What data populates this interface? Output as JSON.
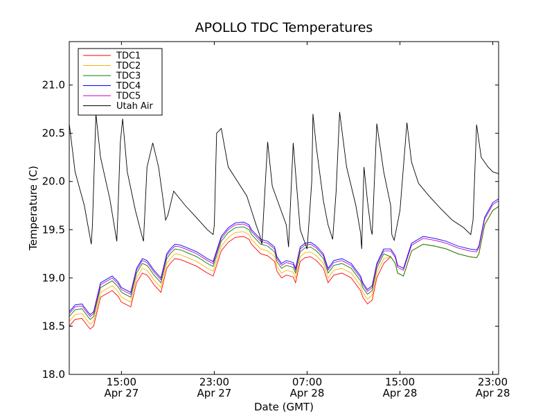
{
  "chart_data": {
    "type": "line",
    "title": "APOLLO TDC Temperatures",
    "xlabel": "Date (GMT)",
    "ylabel": "Temperature (C)",
    "xlim": [
      10.5,
      47.5
    ],
    "ylim": [
      18.0,
      21.45
    ],
    "x_units": "hours since Apr 27 00:00 GMT",
    "legend_position": "upper-left",
    "grid": false,
    "yticks": [
      {
        "value": 18.0,
        "label": "18.0"
      },
      {
        "value": 18.5,
        "label": "18.5"
      },
      {
        "value": 19.0,
        "label": "19.0"
      },
      {
        "value": 19.5,
        "label": "19.5"
      },
      {
        "value": 20.0,
        "label": "20.0"
      },
      {
        "value": 20.5,
        "label": "20.5"
      },
      {
        "value": 21.0,
        "label": "21.0"
      }
    ],
    "xticks": [
      {
        "value": 15,
        "time": "15:00",
        "date": "Apr 27"
      },
      {
        "value": 23,
        "time": "23:00",
        "date": "Apr 27"
      },
      {
        "value": 31,
        "time": "07:00",
        "date": "Apr 28"
      },
      {
        "value": 39,
        "time": "15:00",
        "date": "Apr 28"
      },
      {
        "value": 47,
        "time": "23:00",
        "date": "Apr 28"
      }
    ],
    "tdc_base": {
      "x": [
        10.5,
        11.0,
        11.6,
        12.1,
        12.3,
        12.6,
        13.2,
        14.2,
        14.7,
        15.0,
        15.8,
        16.3,
        16.8,
        17.2,
        17.4,
        17.8,
        18.4,
        18.9,
        19.2,
        19.6,
        20.1,
        20.5,
        21.5,
        22.4,
        22.9,
        23.6,
        24.2,
        24.8,
        25.5,
        26.0,
        26.2,
        27.0,
        27.6,
        28.2,
        28.4,
        28.8,
        29.2,
        29.8,
        30.0,
        30.4,
        30.8,
        31.3,
        31.8,
        32.4,
        32.8,
        33.3,
        34.0,
        34.8,
        35.6,
        35.8,
        36.2,
        36.6,
        37.0,
        37.6,
        38.2,
        38.6,
        38.8,
        39.3,
        40.0,
        41.0,
        42.0,
        43.0,
        44.0,
        45.0,
        45.6,
        45.8,
        46.3,
        47.0,
        47.5
      ],
      "y": [
        18.55,
        18.62,
        18.63,
        18.55,
        18.52,
        18.55,
        18.85,
        18.92,
        18.86,
        18.8,
        18.75,
        19.0,
        19.1,
        19.08,
        19.05,
        18.98,
        18.9,
        19.15,
        19.2,
        19.25,
        19.24,
        19.22,
        19.17,
        19.1,
        19.07,
        19.33,
        19.42,
        19.47,
        19.48,
        19.45,
        19.4,
        19.3,
        19.28,
        19.22,
        19.12,
        19.05,
        19.08,
        19.06,
        19.0,
        19.22,
        19.26,
        19.27,
        19.23,
        19.15,
        19.0,
        19.08,
        19.1,
        19.05,
        18.92,
        18.85,
        18.78,
        18.82,
        19.05,
        19.2,
        19.22,
        19.15,
        19.05,
        19.02,
        19.28,
        19.35,
        19.33,
        19.3,
        19.25,
        19.22,
        19.21,
        19.25,
        19.55,
        19.7,
        19.74
      ]
    },
    "series": [
      {
        "name": "TDC1",
        "color": "#ff0000",
        "offset": -0.05,
        "offset_at_hour_38": 0.0
      },
      {
        "name": "TDC2",
        "color": "#ffb000",
        "offset": 0.0,
        "offset_at_hour_38": 0.0
      },
      {
        "name": "TDC3",
        "color": "#008000",
        "offset": 0.05,
        "offset_at_hour_38": 0.0
      },
      {
        "name": "TDC4",
        "color": "#0000ff",
        "offset": 0.1,
        "offset_at_hour_38": 0.08
      },
      {
        "name": "TDC5",
        "color": "#bf00bf",
        "offset": 0.08,
        "offset_at_hour_38": 0.06
      },
      {
        "name": "Utah Air",
        "color": "#000000",
        "x": [
          10.5,
          11.0,
          11.8,
          12.4,
          12.5,
          12.8,
          13.2,
          14.0,
          14.6,
          14.7,
          14.9,
          15.1,
          15.5,
          16.2,
          16.8,
          16.9,
          17.2,
          17.7,
          18.2,
          18.6,
          18.8,
          19.0,
          19.5,
          20.5,
          21.5,
          22.4,
          22.9,
          23.0,
          23.2,
          23.6,
          24.2,
          25.0,
          25.8,
          26.2,
          26.6,
          26.9,
          27.1,
          27.6,
          28.0,
          28.6,
          29.2,
          29.4,
          29.8,
          30.1,
          30.4,
          31.0,
          31.4,
          31.5,
          31.8,
          32.4,
          32.8,
          33.2,
          33.5,
          33.8,
          34.4,
          35.2,
          35.6,
          35.7,
          35.9,
          36.2,
          36.5,
          36.6,
          37.0,
          37.6,
          38.2,
          38.3,
          38.5,
          39.0,
          39.6,
          40.0,
          40.6,
          41.5,
          42.5,
          43.5,
          44.5,
          45.1,
          45.3,
          45.6,
          46.0,
          46.6,
          47.0,
          47.5
        ],
        "y": [
          20.6,
          20.1,
          19.75,
          19.35,
          19.55,
          20.7,
          20.25,
          19.82,
          19.38,
          19.7,
          20.4,
          20.65,
          20.1,
          19.7,
          19.42,
          19.38,
          20.15,
          20.4,
          20.15,
          19.8,
          19.6,
          19.65,
          19.9,
          19.75,
          19.62,
          19.5,
          19.45,
          19.55,
          20.5,
          20.55,
          20.15,
          20.0,
          19.85,
          19.7,
          19.55,
          19.45,
          19.35,
          20.41,
          19.95,
          19.75,
          19.55,
          19.32,
          20.4,
          19.95,
          19.5,
          19.3,
          20.0,
          20.7,
          20.35,
          19.8,
          19.55,
          19.4,
          19.9,
          20.72,
          20.15,
          19.75,
          19.47,
          19.3,
          20.15,
          19.8,
          19.5,
          19.45,
          20.6,
          20.1,
          19.75,
          19.45,
          19.39,
          19.7,
          20.61,
          20.2,
          19.98,
          19.85,
          19.72,
          19.6,
          19.52,
          19.45,
          19.6,
          20.59,
          20.25,
          20.15,
          20.1,
          20.08
        ]
      }
    ],
    "legend": [
      "TDC1",
      "TDC2",
      "TDC3",
      "TDC4",
      "TDC5",
      "Utah Air"
    ]
  }
}
